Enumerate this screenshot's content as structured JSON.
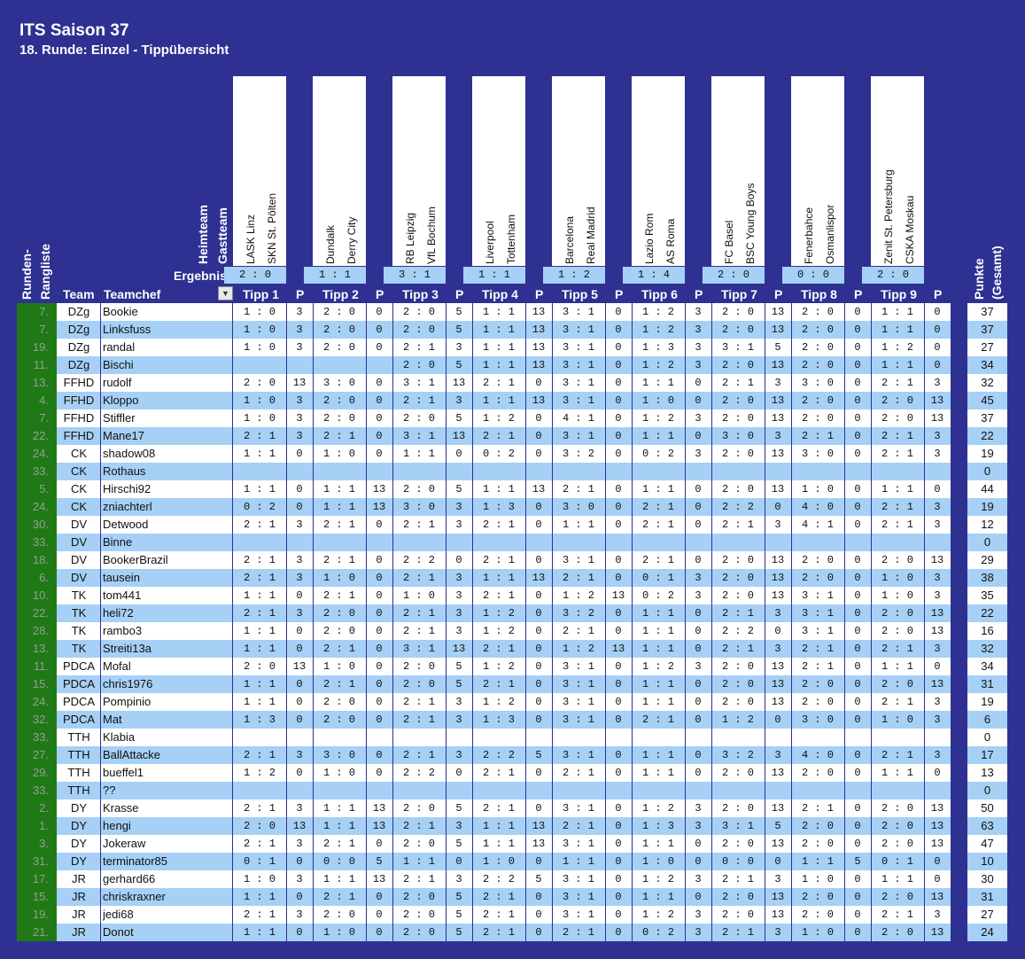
{
  "header": {
    "title": "ITS Saison 37",
    "subtitle": "18. Runde: Einzel - Tippübersicht",
    "heimteam": "Heimteam",
    "gastteam": "Gastteam",
    "ergebnis": "Ergebnis",
    "runden_rangliste_1": "Runden-",
    "runden_rangliste_2": "Rangliste",
    "team": "Team",
    "teamchef": "Teamchef",
    "filter_icon": "▼",
    "points_label": "P",
    "punkte_1": "Punkte",
    "punkte_2": "(Gesamt)"
  },
  "matches": [
    {
      "tipp": "Tipp 1",
      "home": "LASK Linz",
      "away": "SKN St. Pölten",
      "result": "2 : 0"
    },
    {
      "tipp": "Tipp 2",
      "home": "Dundalk",
      "away": "Derry City",
      "result": "1 : 1"
    },
    {
      "tipp": "Tipp 3",
      "home": "RB Leipzig",
      "away": "VfL Bochum",
      "result": "3 : 1"
    },
    {
      "tipp": "Tipp 4",
      "home": "Liverpool",
      "away": "Tottenham",
      "result": "1 : 1"
    },
    {
      "tipp": "Tipp 5",
      "home": "Barcelona",
      "away": "Real Madrid",
      "result": "1 : 2"
    },
    {
      "tipp": "Tipp 6",
      "home": "Lazio Rom",
      "away": "AS Roma",
      "result": "1 : 4"
    },
    {
      "tipp": "Tipp 7",
      "home": "FC Basel",
      "away": "BSC Young Boys",
      "result": "2 : 0"
    },
    {
      "tipp": "Tipp 8",
      "home": "Fenerbahce",
      "away": "Osmanlispor",
      "result": "0 : 0"
    },
    {
      "tipp": "Tipp 9",
      "home": "Zenit St. Petersburg",
      "away": "CSKA Moskau",
      "result": "2 : 0"
    }
  ],
  "rows": [
    {
      "rank": "7.",
      "team": "DZg",
      "chef": "Bookie",
      "tips": [
        "1 : 0",
        "2 : 0",
        "2 : 0",
        "1 : 1",
        "3 : 1",
        "1 : 2",
        "2 : 0",
        "2 : 0",
        "1 : 1"
      ],
      "pts": [
        "3",
        "0",
        "5",
        "13",
        "0",
        "3",
        "13",
        "0",
        "0"
      ],
      "total": "37"
    },
    {
      "rank": "7.",
      "team": "DZg",
      "chef": "Linksfuss",
      "tips": [
        "1 : 0",
        "2 : 0",
        "2 : 0",
        "1 : 1",
        "3 : 1",
        "1 : 2",
        "2 : 0",
        "2 : 0",
        "1 : 1"
      ],
      "pts": [
        "3",
        "0",
        "5",
        "13",
        "0",
        "3",
        "13",
        "0",
        "0"
      ],
      "total": "37"
    },
    {
      "rank": "19.",
      "team": "DZg",
      "chef": "randal",
      "tips": [
        "1 : 0",
        "2 : 0",
        "2 : 1",
        "1 : 1",
        "3 : 1",
        "1 : 3",
        "3 : 1",
        "2 : 0",
        "1 : 2"
      ],
      "pts": [
        "3",
        "0",
        "3",
        "13",
        "0",
        "3",
        "5",
        "0",
        "0"
      ],
      "total": "27"
    },
    {
      "rank": "11.",
      "team": "DZg",
      "chef": "Bischi",
      "tips": [
        "",
        "",
        "2 : 0",
        "1 : 1",
        "3 : 1",
        "1 : 2",
        "2 : 0",
        "2 : 0",
        "1 : 1"
      ],
      "pts": [
        "",
        "",
        "5",
        "13",
        "0",
        "3",
        "13",
        "0",
        "0"
      ],
      "total": "34"
    },
    {
      "rank": "13.",
      "team": "FFHD",
      "chef": "rudolf",
      "tips": [
        "2 : 0",
        "3 : 0",
        "3 : 1",
        "2 : 1",
        "3 : 1",
        "1 : 1",
        "2 : 1",
        "3 : 0",
        "2 : 1"
      ],
      "pts": [
        "13",
        "0",
        "13",
        "0",
        "0",
        "0",
        "3",
        "0",
        "3"
      ],
      "total": "32"
    },
    {
      "rank": "4.",
      "team": "FFHD",
      "chef": "Kloppo",
      "tips": [
        "1 : 0",
        "2 : 0",
        "2 : 1",
        "1 : 1",
        "3 : 1",
        "1 : 0",
        "2 : 0",
        "2 : 0",
        "2 : 0"
      ],
      "pts": [
        "3",
        "0",
        "3",
        "13",
        "0",
        "0",
        "13",
        "0",
        "13"
      ],
      "total": "45"
    },
    {
      "rank": "7.",
      "team": "FFHD",
      "chef": "Stiffler",
      "tips": [
        "1 : 0",
        "2 : 0",
        "2 : 0",
        "1 : 2",
        "4 : 1",
        "1 : 2",
        "2 : 0",
        "2 : 0",
        "2 : 0"
      ],
      "pts": [
        "3",
        "0",
        "5",
        "0",
        "0",
        "3",
        "13",
        "0",
        "13"
      ],
      "total": "37"
    },
    {
      "rank": "22.",
      "team": "FFHD",
      "chef": "Mane17",
      "tips": [
        "2 : 1",
        "2 : 1",
        "3 : 1",
        "2 : 1",
        "3 : 1",
        "1 : 1",
        "3 : 0",
        "2 : 1",
        "2 : 1"
      ],
      "pts": [
        "3",
        "0",
        "13",
        "0",
        "0",
        "0",
        "3",
        "0",
        "3"
      ],
      "total": "22"
    },
    {
      "rank": "24.",
      "team": "CK",
      "chef": "shadow08",
      "tips": [
        "1 : 1",
        "1 : 0",
        "1 : 1",
        "0 : 2",
        "3 : 2",
        "0 : 2",
        "2 : 0",
        "3 : 0",
        "2 : 1"
      ],
      "pts": [
        "0",
        "0",
        "0",
        "0",
        "0",
        "3",
        "13",
        "0",
        "3"
      ],
      "total": "19"
    },
    {
      "rank": "33.",
      "team": "CK",
      "chef": "Rothaus",
      "tips": [
        "",
        "",
        "",
        "",
        "",
        "",
        "",
        "",
        ""
      ],
      "pts": [
        "",
        "",
        "",
        "",
        "",
        "",
        "",
        "",
        ""
      ],
      "total": "0"
    },
    {
      "rank": "5.",
      "team": "CK",
      "chef": "Hirschi92",
      "tips": [
        "1 : 1",
        "1 : 1",
        "2 : 0",
        "1 : 1",
        "2 : 1",
        "1 : 1",
        "2 : 0",
        "1 : 0",
        "1 : 1"
      ],
      "pts": [
        "0",
        "13",
        "5",
        "13",
        "0",
        "0",
        "13",
        "0",
        "0"
      ],
      "total": "44"
    },
    {
      "rank": "24.",
      "team": "CK",
      "chef": "zniachterl",
      "tips": [
        "0 : 2",
        "1 : 1",
        "3 : 0",
        "1 : 3",
        "3 : 0",
        "2 : 1",
        "2 : 2",
        "4 : 0",
        "2 : 1"
      ],
      "pts": [
        "0",
        "13",
        "3",
        "0",
        "0",
        "0",
        "0",
        "0",
        "3"
      ],
      "total": "19"
    },
    {
      "rank": "30.",
      "team": "DV",
      "chef": "Detwood",
      "tips": [
        "2 : 1",
        "2 : 1",
        "2 : 1",
        "2 : 1",
        "1 : 1",
        "2 : 1",
        "2 : 1",
        "4 : 1",
        "2 : 1"
      ],
      "pts": [
        "3",
        "0",
        "3",
        "0",
        "0",
        "0",
        "3",
        "0",
        "3"
      ],
      "total": "12"
    },
    {
      "rank": "33.",
      "team": "DV",
      "chef": "Binne",
      "tips": [
        "",
        "",
        "",
        "",
        "",
        "",
        "",
        "",
        ""
      ],
      "pts": [
        "",
        "",
        "",
        "",
        "",
        "",
        "",
        "",
        ""
      ],
      "total": "0"
    },
    {
      "rank": "18.",
      "team": "DV",
      "chef": "BookerBrazil",
      "tips": [
        "2 : 1",
        "2 : 1",
        "2 : 2",
        "2 : 1",
        "3 : 1",
        "2 : 1",
        "2 : 0",
        "2 : 0",
        "2 : 0"
      ],
      "pts": [
        "3",
        "0",
        "0",
        "0",
        "0",
        "0",
        "13",
        "0",
        "13"
      ],
      "total": "29"
    },
    {
      "rank": "6.",
      "team": "DV",
      "chef": "tausein",
      "tips": [
        "2 : 1",
        "1 : 0",
        "2 : 1",
        "1 : 1",
        "2 : 1",
        "0 : 1",
        "2 : 0",
        "2 : 0",
        "1 : 0"
      ],
      "pts": [
        "3",
        "0",
        "3",
        "13",
        "0",
        "3",
        "13",
        "0",
        "3"
      ],
      "total": "38"
    },
    {
      "rank": "10.",
      "team": "TK",
      "chef": "tom441",
      "tips": [
        "1 : 1",
        "2 : 1",
        "1 : 0",
        "2 : 1",
        "1 : 2",
        "0 : 2",
        "2 : 0",
        "3 : 1",
        "1 : 0"
      ],
      "pts": [
        "0",
        "0",
        "3",
        "0",
        "13",
        "3",
        "13",
        "0",
        "3"
      ],
      "total": "35"
    },
    {
      "rank": "22.",
      "team": "TK",
      "chef": "heli72",
      "tips": [
        "2 : 1",
        "2 : 0",
        "2 : 1",
        "1 : 2",
        "3 : 2",
        "1 : 1",
        "2 : 1",
        "3 : 1",
        "2 : 0"
      ],
      "pts": [
        "3",
        "0",
        "3",
        "0",
        "0",
        "0",
        "3",
        "0",
        "13"
      ],
      "total": "22"
    },
    {
      "rank": "28.",
      "team": "TK",
      "chef": "rambo3",
      "tips": [
        "1 : 1",
        "2 : 0",
        "2 : 1",
        "1 : 2",
        "2 : 1",
        "1 : 1",
        "2 : 2",
        "3 : 1",
        "2 : 0"
      ],
      "pts": [
        "0",
        "0",
        "3",
        "0",
        "0",
        "0",
        "0",
        "0",
        "13"
      ],
      "total": "16"
    },
    {
      "rank": "13.",
      "team": "TK",
      "chef": "Streiti13a",
      "tips": [
        "1 : 1",
        "2 : 1",
        "3 : 1",
        "2 : 1",
        "1 : 2",
        "1 : 1",
        "2 : 1",
        "2 : 1",
        "2 : 1"
      ],
      "pts": [
        "0",
        "0",
        "13",
        "0",
        "13",
        "0",
        "3",
        "0",
        "3"
      ],
      "total": "32"
    },
    {
      "rank": "11.",
      "team": "PDCA",
      "chef": "Mofal",
      "tips": [
        "2 : 0",
        "1 : 0",
        "2 : 0",
        "1 : 2",
        "3 : 1",
        "1 : 2",
        "2 : 0",
        "2 : 1",
        "1 : 1"
      ],
      "pts": [
        "13",
        "0",
        "5",
        "0",
        "0",
        "3",
        "13",
        "0",
        "0"
      ],
      "total": "34"
    },
    {
      "rank": "15.",
      "team": "PDCA",
      "chef": "chris1976",
      "tips": [
        "1 : 1",
        "2 : 1",
        "2 : 0",
        "2 : 1",
        "3 : 1",
        "1 : 1",
        "2 : 0",
        "2 : 0",
        "2 : 0"
      ],
      "pts": [
        "0",
        "0",
        "5",
        "0",
        "0",
        "0",
        "13",
        "0",
        "13"
      ],
      "total": "31"
    },
    {
      "rank": "24.",
      "team": "PDCA",
      "chef": "Pompinio",
      "tips": [
        "1 : 1",
        "2 : 0",
        "2 : 1",
        "1 : 2",
        "3 : 1",
        "1 : 1",
        "2 : 0",
        "2 : 0",
        "2 : 1"
      ],
      "pts": [
        "0",
        "0",
        "3",
        "0",
        "0",
        "0",
        "13",
        "0",
        "3"
      ],
      "total": "19"
    },
    {
      "rank": "32.",
      "team": "PDCA",
      "chef": "Mat",
      "tips": [
        "1 : 3",
        "2 : 0",
        "2 : 1",
        "1 : 3",
        "3 : 1",
        "2 : 1",
        "1 : 2",
        "3 : 0",
        "1 : 0"
      ],
      "pts": [
        "0",
        "0",
        "3",
        "0",
        "0",
        "0",
        "0",
        "0",
        "3"
      ],
      "total": "6"
    },
    {
      "rank": "33.",
      "team": "TTH",
      "chef": "Klabia",
      "tips": [
        "",
        "",
        "",
        "",
        "",
        "",
        "",
        "",
        ""
      ],
      "pts": [
        "",
        "",
        "",
        "",
        "",
        "",
        "",
        "",
        ""
      ],
      "total": "0"
    },
    {
      "rank": "27.",
      "team": "TTH",
      "chef": "BallAttacke",
      "tips": [
        "2 : 1",
        "3 : 0",
        "2 : 1",
        "2 : 2",
        "3 : 1",
        "1 : 1",
        "3 : 2",
        "4 : 0",
        "2 : 1"
      ],
      "pts": [
        "3",
        "0",
        "3",
        "5",
        "0",
        "0",
        "3",
        "0",
        "3"
      ],
      "total": "17"
    },
    {
      "rank": "29.",
      "team": "TTH",
      "chef": "bueffel1",
      "tips": [
        "1 : 2",
        "1 : 0",
        "2 : 2",
        "2 : 1",
        "2 : 1",
        "1 : 1",
        "2 : 0",
        "2 : 0",
        "1 : 1"
      ],
      "pts": [
        "0",
        "0",
        "0",
        "0",
        "0",
        "0",
        "13",
        "0",
        "0"
      ],
      "total": "13"
    },
    {
      "rank": "33.",
      "team": "TTH",
      "chef": "??",
      "tips": [
        "",
        "",
        "",
        "",
        "",
        "",
        "",
        "",
        ""
      ],
      "pts": [
        "",
        "",
        "",
        "",
        "",
        "",
        "",
        "",
        ""
      ],
      "total": "0"
    },
    {
      "rank": "2.",
      "team": "DY",
      "chef": "Krasse",
      "tips": [
        "2 : 1",
        "1 : 1",
        "2 : 0",
        "2 : 1",
        "3 : 1",
        "1 : 2",
        "2 : 0",
        "2 : 1",
        "2 : 0"
      ],
      "pts": [
        "3",
        "13",
        "5",
        "0",
        "0",
        "3",
        "13",
        "0",
        "13"
      ],
      "total": "50"
    },
    {
      "rank": "1.",
      "team": "DY",
      "chef": "hengi",
      "tips": [
        "2 : 0",
        "1 : 1",
        "2 : 1",
        "1 : 1",
        "2 : 1",
        "1 : 3",
        "3 : 1",
        "2 : 0",
        "2 : 0"
      ],
      "pts": [
        "13",
        "13",
        "3",
        "13",
        "0",
        "3",
        "5",
        "0",
        "13"
      ],
      "total": "63"
    },
    {
      "rank": "3.",
      "team": "DY",
      "chef": "Jokeraw",
      "tips": [
        "2 : 1",
        "2 : 1",
        "2 : 0",
        "1 : 1",
        "3 : 1",
        "1 : 1",
        "2 : 0",
        "2 : 0",
        "2 : 0"
      ],
      "pts": [
        "3",
        "0",
        "5",
        "13",
        "0",
        "0",
        "13",
        "0",
        "13"
      ],
      "total": "47"
    },
    {
      "rank": "31.",
      "team": "DY",
      "chef": "terminator85",
      "tips": [
        "0 : 1",
        "0 : 0",
        "1 : 1",
        "1 : 0",
        "1 : 1",
        "1 : 0",
        "0 : 0",
        "1 : 1",
        "0 : 1"
      ],
      "pts": [
        "0",
        "5",
        "0",
        "0",
        "0",
        "0",
        "0",
        "5",
        "0"
      ],
      "total": "10"
    },
    {
      "rank": "17.",
      "team": "JR",
      "chef": "gerhard66",
      "tips": [
        "1 : 0",
        "1 : 1",
        "2 : 1",
        "2 : 2",
        "3 : 1",
        "1 : 2",
        "2 : 1",
        "1 : 0",
        "1 : 1"
      ],
      "pts": [
        "3",
        "13",
        "3",
        "5",
        "0",
        "3",
        "3",
        "0",
        "0"
      ],
      "total": "30"
    },
    {
      "rank": "15.",
      "team": "JR",
      "chef": "chriskraxner",
      "tips": [
        "1 : 1",
        "2 : 1",
        "2 : 0",
        "2 : 1",
        "3 : 1",
        "1 : 1",
        "2 : 0",
        "2 : 0",
        "2 : 0"
      ],
      "pts": [
        "0",
        "0",
        "5",
        "0",
        "0",
        "0",
        "13",
        "0",
        "13"
      ],
      "total": "31"
    },
    {
      "rank": "19.",
      "team": "JR",
      "chef": "jedi68",
      "tips": [
        "2 : 1",
        "2 : 0",
        "2 : 0",
        "2 : 1",
        "3 : 1",
        "1 : 2",
        "2 : 0",
        "2 : 0",
        "2 : 1"
      ],
      "pts": [
        "3",
        "0",
        "5",
        "0",
        "0",
        "3",
        "13",
        "0",
        "3"
      ],
      "total": "27"
    },
    {
      "rank": "21.",
      "team": "JR",
      "chef": "Donot",
      "tips": [
        "1 : 1",
        "1 : 0",
        "2 : 0",
        "2 : 1",
        "2 : 1",
        "0 : 2",
        "2 : 1",
        "1 : 0",
        "2 : 0"
      ],
      "pts": [
        "0",
        "0",
        "5",
        "0",
        "0",
        "3",
        "3",
        "0",
        "13"
      ],
      "total": "24"
    }
  ]
}
